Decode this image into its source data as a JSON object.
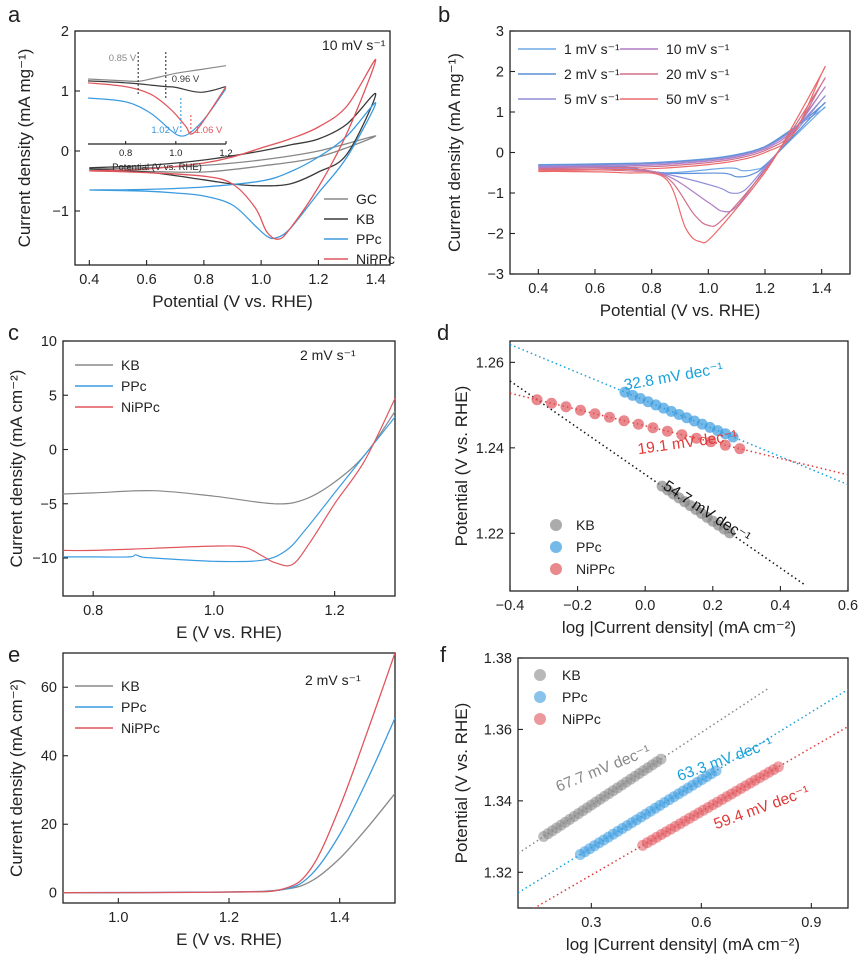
{
  "colors": {
    "GC": "#888888",
    "KB": "#3a3a3a",
    "PPc": "#3a9be0",
    "NiPPc": "#e0555c",
    "fitKB": "#111111",
    "fitPPc": "#1aa0da",
    "fitNiPPc": "#e23838"
  },
  "chart_data": [
    {
      "id": "a",
      "type": "line",
      "panel_label": "a",
      "annotation": "10 mV s⁻¹",
      "xlabel": "Potential (V vs. RHE)",
      "ylabel": "Current density (mA mg⁻¹)",
      "xlim": [
        0.35,
        1.45
      ],
      "ylim": [
        -1.9,
        2
      ],
      "xticks": [
        "0.4",
        "0.6",
        "0.8",
        "1.0",
        "1.2",
        "1.4"
      ],
      "yticks": [
        "−1",
        "0",
        "1",
        "2"
      ],
      "legend": [
        "GC",
        "KB",
        "PPc",
        "NiPPc"
      ],
      "series": [
        {
          "name": "GC",
          "color_key": "GC",
          "x": [
            0.4,
            0.6,
            0.8,
            1.0,
            1.2,
            1.4,
            1.2,
            1.0,
            0.8,
            0.6,
            0.4
          ],
          "y": [
            -0.3,
            -0.28,
            -0.24,
            -0.15,
            0.0,
            0.25,
            -0.1,
            -0.25,
            -0.35,
            -0.34,
            -0.33
          ]
        },
        {
          "name": "KB",
          "color_key": "KB",
          "x": [
            0.4,
            0.6,
            0.8,
            1.0,
            1.1,
            1.2,
            1.3,
            1.4,
            1.3,
            1.2,
            1.1,
            1.0,
            0.9,
            0.8,
            0.6,
            0.4
          ],
          "y": [
            -0.28,
            -0.24,
            -0.15,
            0.0,
            0.1,
            0.2,
            0.45,
            0.95,
            -0.05,
            -0.35,
            -0.55,
            -0.58,
            -0.55,
            -0.48,
            -0.35,
            -0.3
          ]
        },
        {
          "name": "PPc",
          "color_key": "PPc",
          "x": [
            0.4,
            0.6,
            0.8,
            1.0,
            1.1,
            1.2,
            1.3,
            1.4,
            1.3,
            1.2,
            1.1,
            1.05,
            1.02,
            0.98,
            0.9,
            0.8,
            0.7,
            0.6,
            0.4
          ],
          "y": [
            -0.65,
            -0.64,
            -0.6,
            -0.5,
            -0.35,
            -0.1,
            0.25,
            0.8,
            -0.1,
            -0.7,
            -1.3,
            -1.45,
            -1.42,
            -1.25,
            -0.9,
            -0.75,
            -0.7,
            -0.67,
            -0.65
          ]
        },
        {
          "name": "NiPPc",
          "color_key": "NiPPc",
          "x": [
            0.4,
            0.6,
            0.8,
            0.9,
            1.0,
            1.1,
            1.2,
            1.3,
            1.4,
            1.3,
            1.2,
            1.1,
            1.06,
            1.02,
            0.98,
            0.9,
            0.8,
            0.6,
            0.4
          ],
          "y": [
            -0.33,
            -0.3,
            -0.2,
            -0.1,
            0.05,
            0.2,
            0.4,
            0.75,
            1.52,
            0.3,
            -0.6,
            -1.3,
            -1.47,
            -1.35,
            -0.95,
            -0.55,
            -0.42,
            -0.36,
            -0.33
          ]
        }
      ],
      "inset": {
        "xlabel": "Potential (V vs. RHE)",
        "xticks": [
          "0.8",
          "1.0",
          "1.2"
        ],
        "markers": [
          {
            "label": "0.85 V",
            "color_key": "GC"
          },
          {
            "label": "0.96 V",
            "color_key": "KB"
          },
          {
            "label": "1.02 V",
            "color_key": "PPc"
          },
          {
            "label": "1.06 V",
            "color_key": "NiPPc"
          }
        ]
      }
    },
    {
      "id": "b",
      "type": "line",
      "panel_label": "b",
      "xlabel": "Potential (V vs. RHE)",
      "ylabel": "Current density (mA mg⁻¹)",
      "xlim": [
        0.3,
        1.5
      ],
      "ylim": [
        -3,
        3
      ],
      "xticks": [
        "0.4",
        "0.6",
        "0.8",
        "1.0",
        "1.2",
        "1.4"
      ],
      "yticks": [
        "−3",
        "−2",
        "−1",
        "0",
        "1",
        "2",
        "3"
      ],
      "legend": [
        "1 mV s⁻¹",
        "2 mV s⁻¹",
        "5 mV s⁻¹",
        "10 mV s⁻¹",
        "20 mV s⁻¹",
        "50 mV s⁻¹"
      ],
      "series": [
        {
          "name": "1 mV s⁻¹",
          "color": "#6fa8e8",
          "peak_x": 1.12,
          "peak_y": -0.45,
          "top": 1.05,
          "base": -0.3
        },
        {
          "name": "2 mV s⁻¹",
          "color": "#5b8fd6",
          "peak_x": 1.1,
          "peak_y": -0.6,
          "top": 1.15,
          "base": -0.31
        },
        {
          "name": "5 mV s⁻¹",
          "color": "#8f8fd8",
          "peak_x": 1.08,
          "peak_y": -1.0,
          "top": 1.3,
          "base": -0.33
        },
        {
          "name": "10 mV s⁻¹",
          "color": "#b07cc6",
          "peak_x": 1.05,
          "peak_y": -1.45,
          "top": 1.5,
          "base": -0.36
        },
        {
          "name": "20 mV s⁻¹",
          "color": "#d0708a",
          "peak_x": 1.0,
          "peak_y": -1.8,
          "top": 1.7,
          "base": -0.4
        },
        {
          "name": "50 mV s⁻¹",
          "color": "#ec6a6a",
          "peak_x": 0.97,
          "peak_y": -2.2,
          "top": 1.95,
          "base": -0.45
        }
      ]
    },
    {
      "id": "c",
      "type": "line",
      "panel_label": "c",
      "annotation": "2 mV s⁻¹",
      "xlabel": "E (V vs. RHE)",
      "ylabel": "Current density (mA cm⁻²)",
      "xlim": [
        0.75,
        1.3
      ],
      "ylim": [
        -13.5,
        10
      ],
      "xticks": [
        "0.8",
        "1.0",
        "1.2"
      ],
      "yticks": [
        "−10",
        "−5",
        "0",
        "5",
        "10"
      ],
      "legend": [
        "KB",
        "PPc",
        "NiPPc"
      ],
      "series": [
        {
          "name": "KB",
          "color_key": "GC",
          "x": [
            0.75,
            0.8,
            0.9,
            1.0,
            1.1,
            1.15,
            1.2,
            1.25,
            1.3
          ],
          "y": [
            -4.1,
            -4.0,
            -3.8,
            -4.3,
            -5.0,
            -4.6,
            -3.0,
            -0.5,
            3.5
          ]
        },
        {
          "name": "PPc",
          "color_key": "PPc",
          "x": [
            0.75,
            0.8,
            0.86,
            0.87,
            0.88,
            0.9,
            1.0,
            1.08,
            1.12,
            1.15,
            1.2,
            1.25,
            1.3
          ],
          "y": [
            -9.9,
            -9.9,
            -9.9,
            -9.7,
            -9.9,
            -10.0,
            -10.3,
            -10.2,
            -9.3,
            -7.5,
            -4.0,
            -0.5,
            3.0
          ]
        },
        {
          "name": "NiPPc",
          "color_key": "NiPPc",
          "x": [
            0.75,
            0.8,
            0.9,
            1.0,
            1.05,
            1.08,
            1.1,
            1.13,
            1.16,
            1.2,
            1.25,
            1.3
          ],
          "y": [
            -9.3,
            -9.3,
            -9.1,
            -8.9,
            -9.0,
            -9.8,
            -10.4,
            -10.6,
            -8.5,
            -5.0,
            -1.0,
            4.7
          ]
        }
      ]
    },
    {
      "id": "d",
      "type": "scatter",
      "panel_label": "d",
      "xlabel": "log |Current density| (mA cm⁻²)",
      "ylabel": "Potential (V vs. RHE)",
      "xlim": [
        -0.4,
        0.6
      ],
      "ylim": [
        1.2065,
        1.265
      ],
      "xticks": [
        "−0.4",
        "−0.2",
        "0.0",
        "0.2",
        "0.4",
        "0.6"
      ],
      "yticks": [
        "1.22",
        "1.24",
        "1.26"
      ],
      "legend": [
        "KB",
        "PPc",
        "NiPPc"
      ],
      "series": [
        {
          "name": "KB",
          "color_key": "GC",
          "fit_key": "fitKB",
          "slope_label": "54.7 mV dec⁻¹",
          "x0": 0.05,
          "x1": 0.25,
          "n": 13,
          "slope": -0.0547,
          "intercept": 1.23377,
          "fit_x": [
            -0.4,
            0.47
          ]
        },
        {
          "name": "PPc",
          "color_key": "PPc",
          "fit_key": "fitPPc",
          "slope_label": "32.8 mV dec⁻¹",
          "x0": -0.06,
          "x1": 0.26,
          "n": 15,
          "slope": -0.0328,
          "intercept": 1.25107,
          "fit_x": [
            -0.4,
            0.6
          ]
        },
        {
          "name": "NiPPc",
          "color_key": "NiPPc",
          "fit_key": "fitNiPPc",
          "slope_label": "19.1 mV dec⁻¹",
          "x0": -0.32,
          "x1": 0.28,
          "n": 15,
          "slope": -0.0191,
          "intercept": 1.24515,
          "fit_x": [
            -0.4,
            0.6
          ]
        }
      ]
    },
    {
      "id": "e",
      "type": "line",
      "panel_label": "e",
      "annotation": "2 mV s⁻¹",
      "xlabel": "E (V vs. RHE)",
      "ylabel": "Current density (mA cm⁻²)",
      "xlim": [
        0.9,
        1.5
      ],
      "ylim": [
        -3,
        70
      ],
      "xticks": [
        "1.0",
        "1.2",
        "1.4"
      ],
      "yticks": [
        "0",
        "20",
        "40",
        "60"
      ],
      "legend": [
        "KB",
        "PPc",
        "NiPPc"
      ],
      "series": [
        {
          "name": "KB",
          "color_key": "GC",
          "x": [
            0.9,
            1.2,
            1.3,
            1.35,
            1.4,
            1.45,
            1.5
          ],
          "y": [
            0,
            0.2,
            1.0,
            3.5,
            10,
            19,
            29
          ]
        },
        {
          "name": "PPc",
          "color_key": "PPc",
          "x": [
            0.9,
            1.2,
            1.3,
            1.35,
            1.4,
            1.45,
            1.5
          ],
          "y": [
            0,
            0.2,
            1.0,
            5.5,
            17,
            33,
            51
          ]
        },
        {
          "name": "NiPPc",
          "color_key": "NiPPc",
          "x": [
            0.9,
            1.2,
            1.3,
            1.35,
            1.4,
            1.45,
            1.5
          ],
          "y": [
            0,
            0.2,
            1.2,
            7.5,
            25,
            47,
            70
          ]
        }
      ]
    },
    {
      "id": "f",
      "type": "scatter",
      "panel_label": "f",
      "xlabel": "log |Current density| (mA cm⁻²)",
      "ylabel": "Potential (V vs. RHE)",
      "xlim": [
        0.1,
        1.0
      ],
      "ylim": [
        1.31,
        1.38
      ],
      "xticks": [
        "0.3",
        "0.6",
        "0.9"
      ],
      "yticks": [
        "1.32",
        "1.34",
        "1.36",
        "1.38"
      ],
      "legend": [
        "KB",
        "PPc",
        "NiPPc"
      ],
      "series": [
        {
          "name": "KB",
          "color_key": "GC",
          "fit_key": "GC",
          "slope_label": "67.7 mV dec⁻¹",
          "x0": 0.17,
          "x1": 0.49,
          "n": 28,
          "slope": 0.0677,
          "intercept": 1.3185,
          "fit_x": [
            0.1,
            0.78
          ]
        },
        {
          "name": "PPc",
          "color_key": "PPc",
          "fit_key": "fitPPc",
          "slope_label": "63.3 mV dec⁻¹",
          "x0": 0.27,
          "x1": 0.64,
          "n": 30,
          "slope": 0.0633,
          "intercept": 1.3079,
          "fit_x": [
            0.1,
            1.0
          ]
        },
        {
          "name": "NiPPc",
          "color_key": "NiPPc",
          "fit_key": "fitNiPPc",
          "slope_label": "59.4 mV dec⁻¹",
          "x0": 0.44,
          "x1": 0.81,
          "n": 30,
          "slope": 0.0594,
          "intercept": 1.3014,
          "fit_x": [
            0.1,
            1.0
          ]
        }
      ]
    }
  ]
}
